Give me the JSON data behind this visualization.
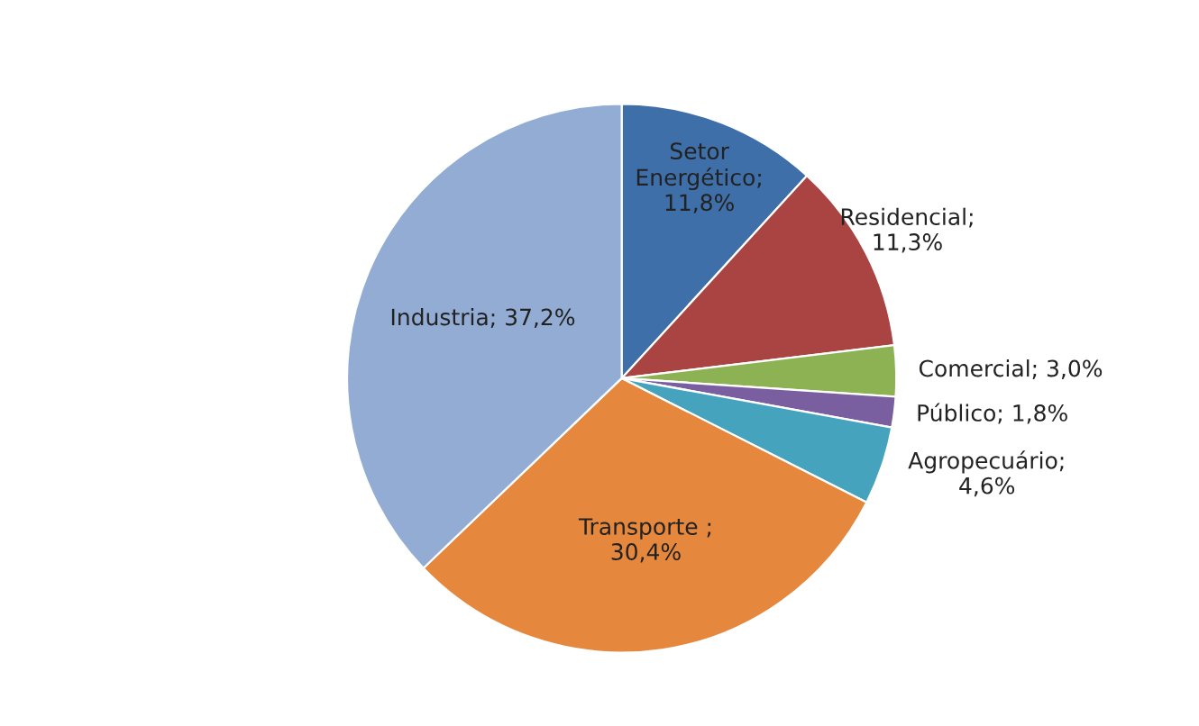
{
  "chart_data": {
    "type": "pie",
    "categories": [
      "Setor\nEnergético;\n11,8%",
      "Residencial;\n11,3%",
      "Comercial; 3,0%",
      "Público; 1,8%",
      "Agropecuário;\n4,6%",
      "Transporte ;\n30,4%",
      "Industria; 37,2%"
    ],
    "values": [
      11.8,
      11.3,
      3.0,
      1.8,
      4.6,
      30.4,
      37.2
    ],
    "colors": [
      "#3e6fa8",
      "#a94442",
      "#8db254",
      "#7a5fa0",
      "#45a3bd",
      "#e5873c",
      "#92acd4"
    ]
  }
}
